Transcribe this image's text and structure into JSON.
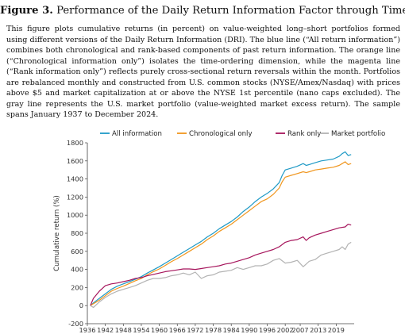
{
  "figure": {
    "label": "Figure 3.",
    "title": "Performance of the Daily Return Information Factor through Time",
    "caption": "This figure plots cumulative returns (in percent) on value-weighted long–short portfolios formed using different versions of the Daily Return Information (DRI). The blue line (“All return information”) combines both chronological and rank-based components of past return information. The orange line (“Chronological information only”) isolates the time-ordering dimension, while the magenta line (“Rank information only”) reflects purely cross-sectional return reversals within the month. Portfolios are rebalanced monthly and constructed from U.S. common stocks (NYSE/Amex/Nasdaq) with prices above $5 and market capitalization at or above the NYSE 1st percentile (nano caps excluded). The gray line represents the U.S. market portfolio (value-weighted market excess return). The sample spans January 1937 to December 2024."
  },
  "chart_data": {
    "type": "line",
    "title": "",
    "xlabel": "",
    "ylabel": "Cumulative return (%)",
    "xlim": [
      1936,
      2025
    ],
    "ylim": [
      -200,
      1800
    ],
    "yticks": [
      -200,
      0,
      200,
      400,
      600,
      800,
      1000,
      1200,
      1400,
      1600,
      1800
    ],
    "xticks": [
      1936,
      1942,
      1948,
      1954,
      1960,
      1966,
      1972,
      1978,
      1984,
      1990,
      1996,
      2002,
      2007,
      2013,
      2019
    ],
    "grid": false,
    "legend_position": "top",
    "series": [
      {
        "name": "All information",
        "color": "#1f9ac6",
        "x": [
          1937,
          1938,
          1940,
          1942,
          1944,
          1946,
          1948,
          1950,
          1952,
          1954,
          1956,
          1958,
          1960,
          1962,
          1964,
          1966,
          1968,
          1970,
          1972,
          1974,
          1976,
          1978,
          1980,
          1982,
          1984,
          1986,
          1988,
          1990,
          1992,
          1994,
          1996,
          1998,
          2000,
          2001,
          2002,
          2004,
          2006,
          2008,
          2009,
          2010,
          2012,
          2014,
          2016,
          2018,
          2020,
          2021,
          2022,
          2023,
          2024
        ],
        "values": [
          0,
          30,
          80,
          130,
          180,
          215,
          240,
          265,
          290,
          320,
          360,
          395,
          430,
          470,
          510,
          550,
          590,
          630,
          670,
          710,
          760,
          800,
          850,
          890,
          930,
          980,
          1040,
          1090,
          1150,
          1200,
          1240,
          1290,
          1360,
          1440,
          1500,
          1520,
          1540,
          1570,
          1550,
          1560,
          1580,
          1600,
          1610,
          1620,
          1650,
          1680,
          1700,
          1660,
          1670
        ]
      },
      {
        "name": "Chronological only",
        "color": "#f0961e",
        "x": [
          1937,
          1938,
          1940,
          1942,
          1944,
          1946,
          1948,
          1950,
          1952,
          1954,
          1956,
          1958,
          1960,
          1962,
          1964,
          1966,
          1968,
          1970,
          1972,
          1974,
          1976,
          1978,
          1980,
          1982,
          1984,
          1986,
          1988,
          1990,
          1992,
          1994,
          1996,
          1998,
          2000,
          2001,
          2002,
          2004,
          2006,
          2008,
          2009,
          2010,
          2012,
          2014,
          2016,
          2018,
          2020,
          2021,
          2022,
          2023,
          2024
        ],
        "values": [
          0,
          20,
          60,
          110,
          160,
          190,
          215,
          245,
          275,
          300,
          340,
          375,
          405,
          445,
          485,
          520,
          560,
          600,
          640,
          680,
          730,
          770,
          820,
          860,
          900,
          950,
          1000,
          1050,
          1100,
          1150,
          1180,
          1230,
          1300,
          1370,
          1420,
          1440,
          1460,
          1480,
          1470,
          1480,
          1500,
          1510,
          1520,
          1530,
          1550,
          1570,
          1590,
          1560,
          1570
        ]
      },
      {
        "name": "Rank only",
        "color": "#a6155c",
        "x": [
          1937,
          1938,
          1940,
          1942,
          1944,
          1946,
          1948,
          1950,
          1952,
          1954,
          1956,
          1958,
          1960,
          1962,
          1964,
          1966,
          1968,
          1970,
          1972,
          1974,
          1976,
          1978,
          1980,
          1982,
          1984,
          1986,
          1988,
          1990,
          1992,
          1994,
          1996,
          1998,
          2000,
          2002,
          2004,
          2006,
          2008,
          2009,
          2010,
          2012,
          2014,
          2016,
          2018,
          2020,
          2022,
          2023,
          2024
        ],
        "values": [
          0,
          80,
          160,
          220,
          240,
          250,
          265,
          280,
          300,
          310,
          330,
          345,
          360,
          375,
          385,
          395,
          405,
          405,
          400,
          410,
          420,
          430,
          440,
          460,
          470,
          490,
          510,
          530,
          560,
          580,
          600,
          620,
          650,
          700,
          720,
          730,
          760,
          720,
          750,
          780,
          800,
          820,
          840,
          860,
          870,
          900,
          890
        ]
      },
      {
        "name": "Market portfolio",
        "color": "#b3b3b3",
        "x": [
          1937,
          1938,
          1940,
          1942,
          1944,
          1946,
          1948,
          1950,
          1952,
          1954,
          1956,
          1958,
          1960,
          1962,
          1964,
          1966,
          1968,
          1970,
          1972,
          1974,
          1976,
          1978,
          1980,
          1982,
          1984,
          1986,
          1988,
          1990,
          1992,
          1994,
          1996,
          1998,
          2000,
          2002,
          2004,
          2006,
          2008,
          2009,
          2010,
          2012,
          2014,
          2016,
          2018,
          2020,
          2021,
          2022,
          2023,
          2024
        ],
        "values": [
          0,
          -20,
          40,
          90,
          130,
          160,
          180,
          200,
          220,
          250,
          280,
          300,
          300,
          310,
          330,
          340,
          360,
          340,
          370,
          300,
          330,
          340,
          370,
          380,
          390,
          420,
          400,
          420,
          440,
          440,
          460,
          500,
          520,
          470,
          480,
          500,
          430,
          460,
          490,
          510,
          560,
          580,
          600,
          620,
          650,
          620,
          680,
          700
        ]
      }
    ]
  }
}
